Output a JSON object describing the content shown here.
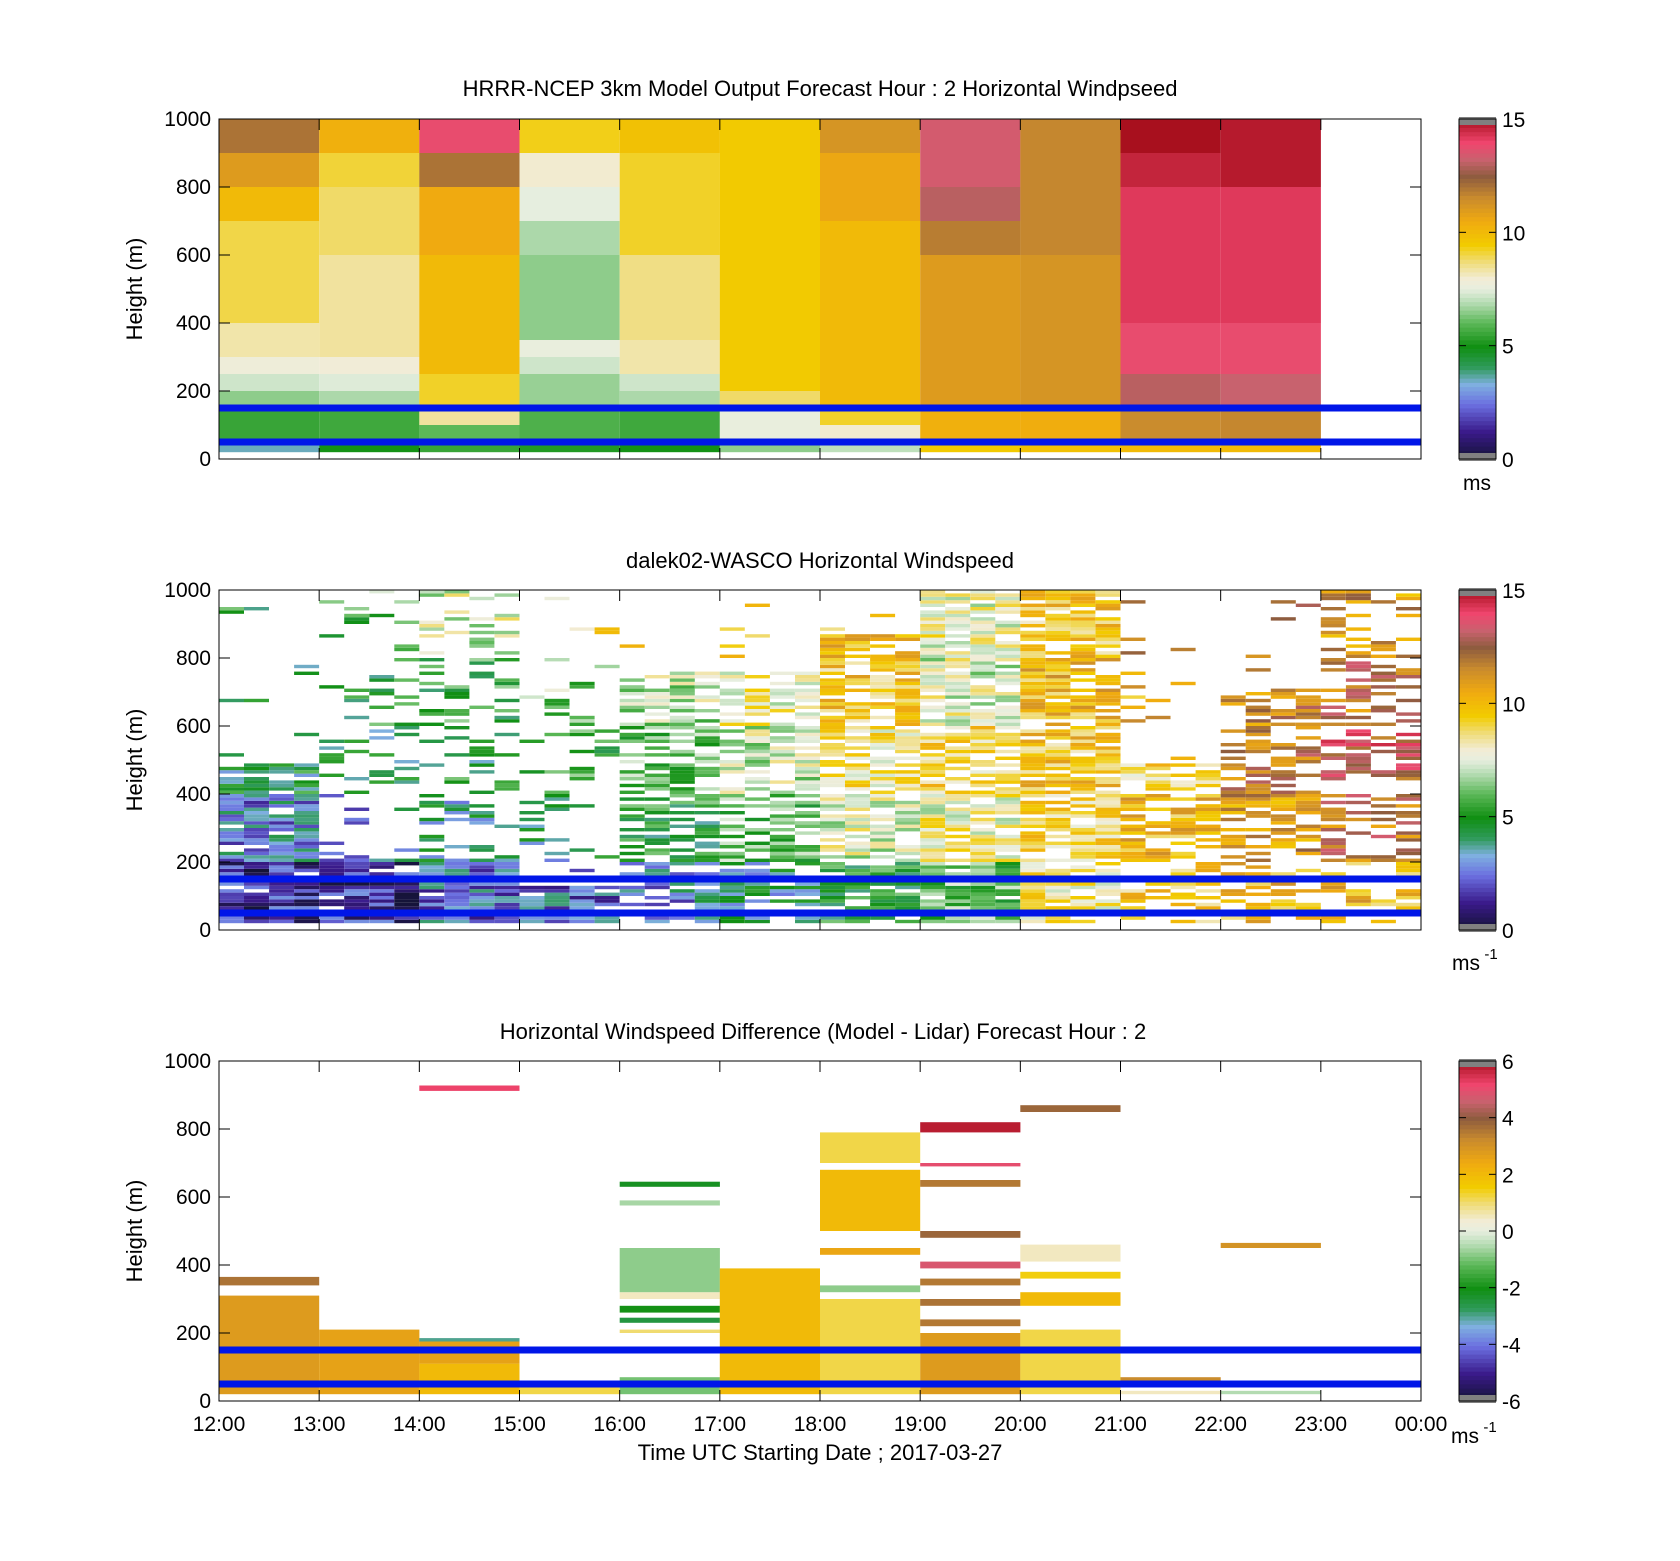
{
  "figure": {
    "xlabel": "Time UTC  Starting Date ; 2017-03-27",
    "xticks": [
      "12:00",
      "13:00",
      "14:00",
      "15:00",
      "16:00",
      "17:00",
      "18:00",
      "19:00",
      "20:00",
      "21:00",
      "22:00",
      "23:00",
      "00:00"
    ]
  },
  "chart_data": [
    {
      "type": "heatmap",
      "title": "HRRR-NCEP 3km Model Output   Forecast Hour : 2 Horizontal Windpseed",
      "xlabel": "",
      "ylabel": "Height (m)",
      "ylim": [
        0,
        1000
      ],
      "yticks": [
        0,
        200,
        400,
        600,
        800,
        1000
      ],
      "colorbar": {
        "min": 0,
        "max": 15,
        "ticks": [
          0,
          5,
          10,
          15
        ],
        "unit": "ms"
      },
      "reference_lines_m": [
        50,
        150
      ],
      "columns": [
        {
          "start": "12:00",
          "cells": [
            [
              20,
              50,
              3.5
            ],
            [
              50,
              150,
              5.5
            ],
            [
              150,
              200,
              6.5
            ],
            [
              200,
              250,
              7.2
            ],
            [
              250,
              300,
              7.8
            ],
            [
              300,
              400,
              8.3
            ],
            [
              400,
              700,
              9.0
            ],
            [
              700,
              800,
              10.0
            ],
            [
              800,
              900,
              11.0
            ],
            [
              900,
              1000,
              12.0
            ]
          ]
        },
        {
          "start": "13:00",
          "cells": [
            [
              20,
              50,
              5.0
            ],
            [
              50,
              150,
              5.6
            ],
            [
              150,
              200,
              6.8
            ],
            [
              200,
              250,
              7.4
            ],
            [
              250,
              300,
              7.9
            ],
            [
              300,
              600,
              8.4
            ],
            [
              600,
              800,
              8.8
            ],
            [
              800,
              900,
              9.1
            ],
            [
              900,
              1000,
              10.3
            ]
          ]
        },
        {
          "start": "14:00",
          "cells": [
            [
              20,
              50,
              5.5
            ],
            [
              50,
              100,
              6.0
            ],
            [
              100,
              150,
              8.4
            ],
            [
              150,
              250,
              9.2
            ],
            [
              250,
              600,
              10.0
            ],
            [
              600,
              800,
              10.5
            ],
            [
              800,
              900,
              12.0
            ],
            [
              900,
              1000,
              13.8
            ]
          ]
        },
        {
          "start": "15:00",
          "cells": [
            [
              20,
              50,
              5.2
            ],
            [
              50,
              150,
              5.8
            ],
            [
              150,
              250,
              6.6
            ],
            [
              250,
              300,
              7.2
            ],
            [
              300,
              350,
              7.6
            ],
            [
              350,
              600,
              6.5
            ],
            [
              600,
              700,
              6.8
            ],
            [
              700,
              800,
              7.5
            ],
            [
              800,
              900,
              8.0
            ],
            [
              900,
              1000,
              9.3
            ]
          ]
        },
        {
          "start": "16:00",
          "cells": [
            [
              20,
              50,
              5.0
            ],
            [
              50,
              150,
              5.6
            ],
            [
              150,
              200,
              6.8
            ],
            [
              200,
              250,
              7.2
            ],
            [
              250,
              350,
              8.3
            ],
            [
              350,
              600,
              8.6
            ],
            [
              600,
              900,
              9.2
            ],
            [
              900,
              1000,
              9.8
            ]
          ]
        },
        {
          "start": "17:00",
          "cells": [
            [
              20,
              50,
              6.5
            ],
            [
              50,
              150,
              7.6
            ],
            [
              150,
              200,
              8.8
            ],
            [
              200,
              1000,
              9.5
            ]
          ]
        },
        {
          "start": "18:00",
          "cells": [
            [
              20,
              50,
              7.0
            ],
            [
              50,
              100,
              8.0
            ],
            [
              100,
              150,
              9.2
            ],
            [
              150,
              700,
              10.0
            ],
            [
              700,
              900,
              10.6
            ],
            [
              900,
              1000,
              11.2
            ]
          ]
        },
        {
          "start": "19:00",
          "cells": [
            [
              20,
              50,
              9.5
            ],
            [
              50,
              150,
              10.3
            ],
            [
              150,
              600,
              11.0
            ],
            [
              600,
              700,
              11.8
            ],
            [
              700,
              800,
              13.0
            ],
            [
              800,
              1000,
              13.4
            ]
          ]
        },
        {
          "start": "20:00",
          "cells": [
            [
              20,
              50,
              9.8
            ],
            [
              50,
              150,
              10.4
            ],
            [
              150,
              600,
              11.2
            ],
            [
              600,
              1000,
              11.6
            ]
          ]
        },
        {
          "start": "21:00",
          "cells": [
            [
              20,
              50,
              10.0
            ],
            [
              50,
              150,
              11.5
            ],
            [
              150,
              250,
              13.0
            ],
            [
              250,
              400,
              13.8
            ],
            [
              400,
              800,
              14.2
            ],
            [
              800,
              900,
              14.6
            ],
            [
              900,
              1000,
              15.2
            ]
          ]
        },
        {
          "start": "22:00",
          "cells": [
            [
              20,
              50,
              10.0
            ],
            [
              50,
              150,
              11.6
            ],
            [
              150,
              250,
              13.2
            ],
            [
              250,
              400,
              13.8
            ],
            [
              400,
              800,
              14.2
            ],
            [
              800,
              1000,
              14.8
            ]
          ]
        }
      ]
    },
    {
      "type": "heatmap",
      "title": "dalek02-WASCO  Horizontal Windspeed",
      "xlabel": "",
      "ylabel": "Height (m)",
      "ylim": [
        0,
        1000
      ],
      "yticks": [
        0,
        200,
        400,
        600,
        800,
        1000
      ],
      "colorbar": {
        "min": 0,
        "max": 15,
        "ticks": [
          0,
          5,
          10,
          15
        ],
        "unit": "ms",
        "unit_exponent": "-1"
      },
      "reference_lines_m": [
        50,
        150
      ],
      "bins_per_hour": 4,
      "bin_profiles": [
        {
          "hour_range": [
            "12:00",
            "13:00"
          ],
          "top_m": 480,
          "low_m": 400,
          "values": [
            1.5,
            2.8,
            4.5,
            4.8,
            4.8,
            5.0
          ],
          "coverage": 0.85
        },
        {
          "hour_range": [
            "13:00",
            "14:00"
          ],
          "top_m": 1000,
          "low_m": 200,
          "values": [
            1.5,
            3.0,
            4.5,
            5.0,
            6.0,
            5.2
          ],
          "coverage": 0.25
        },
        {
          "hour_range": [
            "14:00",
            "15:00"
          ],
          "top_m": 1000,
          "low_m": 200,
          "values": [
            2.5,
            4.0,
            4.8,
            5.2,
            7.5,
            9.0
          ],
          "coverage": 0.3
        },
        {
          "hour_range": [
            "15:00",
            "16:00"
          ],
          "top_m": 700,
          "low_m": 120,
          "values": [
            2.5,
            4.0,
            5.5,
            6.5,
            8.5,
            5.5
          ],
          "coverage": 0.2
        },
        {
          "hour_range": [
            "16:00",
            "17:00"
          ],
          "top_m": 750,
          "low_m": 0,
          "values": [
            3.0,
            5.0,
            6.0,
            7.0,
            9.0,
            10.5
          ],
          "coverage": 0.6
        },
        {
          "hour_range": [
            "17:00",
            "18:00"
          ],
          "top_m": 760,
          "low_m": 0,
          "values": [
            4.0,
            6.0,
            7.2,
            8.0,
            9.5,
            5.5
          ],
          "coverage": 0.65
        },
        {
          "hour_range": [
            "18:00",
            "19:00"
          ],
          "top_m": 860,
          "low_m": 0,
          "values": [
            5.0,
            7.5,
            8.5,
            9.5,
            10.0,
            9.2
          ],
          "coverage": 0.75
        },
        {
          "hour_range": [
            "19:00",
            "20:00"
          ],
          "top_m": 1000,
          "low_m": 0,
          "values": [
            6.0,
            8.0,
            9.0,
            7.5,
            8.0,
            6.5
          ],
          "coverage": 0.85
        },
        {
          "hour_range": [
            "20:00",
            "21:00"
          ],
          "top_m": 1000,
          "low_m": 0,
          "values": [
            8.5,
            9.0,
            9.5,
            10.0,
            9.5,
            9.0
          ],
          "coverage": 0.8
        },
        {
          "hour_range": [
            "21:00",
            "22:00"
          ],
          "top_m": 480,
          "low_m": 0,
          "values": [
            9.5,
            10.0,
            9.0,
            10.5,
            11.0,
            10.0
          ],
          "coverage": 0.6
        },
        {
          "hour_range": [
            "22:00",
            "23:00"
          ],
          "top_m": 700,
          "low_m": 0,
          "values": [
            10.0,
            11.0,
            12.0,
            11.5,
            12.5,
            13.0
          ],
          "coverage": 0.55
        },
        {
          "hour_range": [
            "23:00",
            "00:00"
          ],
          "top_m": 1000,
          "low_m": 0,
          "values": [
            10.0,
            12.0,
            13.0,
            12.0,
            11.0,
            12.5
          ],
          "coverage": 0.45
        }
      ]
    },
    {
      "type": "heatmap",
      "title": "Horizontal Windspeed Difference (Model - Lidar) Forecast Hour : 2",
      "xlabel": "Time UTC  Starting Date ; 2017-03-27",
      "ylabel": "Height (m)",
      "ylim": [
        0,
        1000
      ],
      "yticks": [
        0,
        200,
        400,
        600,
        800,
        1000
      ],
      "colorbar": {
        "min": -6,
        "max": 6,
        "ticks": [
          -6,
          -4,
          -2,
          0,
          2,
          4,
          6
        ],
        "unit": "ms",
        "unit_exponent": "-1"
      },
      "reference_lines_m": [
        50,
        150
      ],
      "columns": [
        {
          "start": "12:00",
          "cells": [
            [
              20,
              310,
              2.8
            ],
            [
              340,
              365,
              3.6
            ]
          ]
        },
        {
          "start": "13:00",
          "cells": [
            [
              20,
              210,
              2.6
            ]
          ]
        },
        {
          "start": "14:00",
          "cells": [
            [
              20,
              110,
              2.0
            ],
            [
              110,
              175,
              2.6
            ],
            [
              175,
              185,
              -3.0
            ],
            [
              912,
              928,
              5.2
            ]
          ]
        },
        {
          "start": "15:00",
          "cells": [
            [
              20,
              60,
              1.2
            ]
          ]
        },
        {
          "start": "16:00",
          "cells": [
            [
              20,
              70,
              -1.0
            ],
            [
              140,
              160,
              -1.5
            ],
            [
              200,
              210,
              1.0
            ],
            [
              230,
              245,
              -2.5
            ],
            [
              260,
              280,
              -2.0
            ],
            [
              300,
              320,
              0.5
            ],
            [
              320,
              450,
              -0.8
            ],
            [
              575,
              590,
              -0.6
            ],
            [
              630,
              645,
              -2.2
            ]
          ]
        },
        {
          "start": "17:00",
          "cells": [
            [
              20,
              390,
              2.0
            ]
          ]
        },
        {
          "start": "18:00",
          "cells": [
            [
              20,
              300,
              1.2
            ],
            [
              320,
              340,
              -0.8
            ],
            [
              430,
              450,
              2.5
            ],
            [
              500,
              680,
              2.0
            ],
            [
              700,
              790,
              1.2
            ]
          ]
        },
        {
          "start": "19:00",
          "cells": [
            [
              20,
              200,
              2.8
            ],
            [
              220,
              240,
              3.5
            ],
            [
              280,
              300,
              3.6
            ],
            [
              340,
              360,
              3.5
            ],
            [
              390,
              410,
              4.8
            ],
            [
              480,
              500,
              3.8
            ],
            [
              630,
              650,
              3.5
            ],
            [
              690,
              700,
              5.0
            ],
            [
              790,
              820,
              5.8
            ]
          ]
        },
        {
          "start": "20:00",
          "cells": [
            [
              20,
              210,
              1.2
            ],
            [
              280,
              320,
              2.0
            ],
            [
              360,
              380,
              1.5
            ],
            [
              410,
              460,
              0.5
            ],
            [
              850,
              870,
              3.8
            ]
          ]
        },
        {
          "start": "21:00",
          "cells": [
            [
              20,
              30,
              0.5
            ],
            [
              60,
              70,
              3.2
            ]
          ]
        },
        {
          "start": "22:00",
          "cells": [
            [
              20,
              30,
              -0.5
            ],
            [
              450,
              465,
              3.0
            ]
          ]
        }
      ]
    }
  ]
}
